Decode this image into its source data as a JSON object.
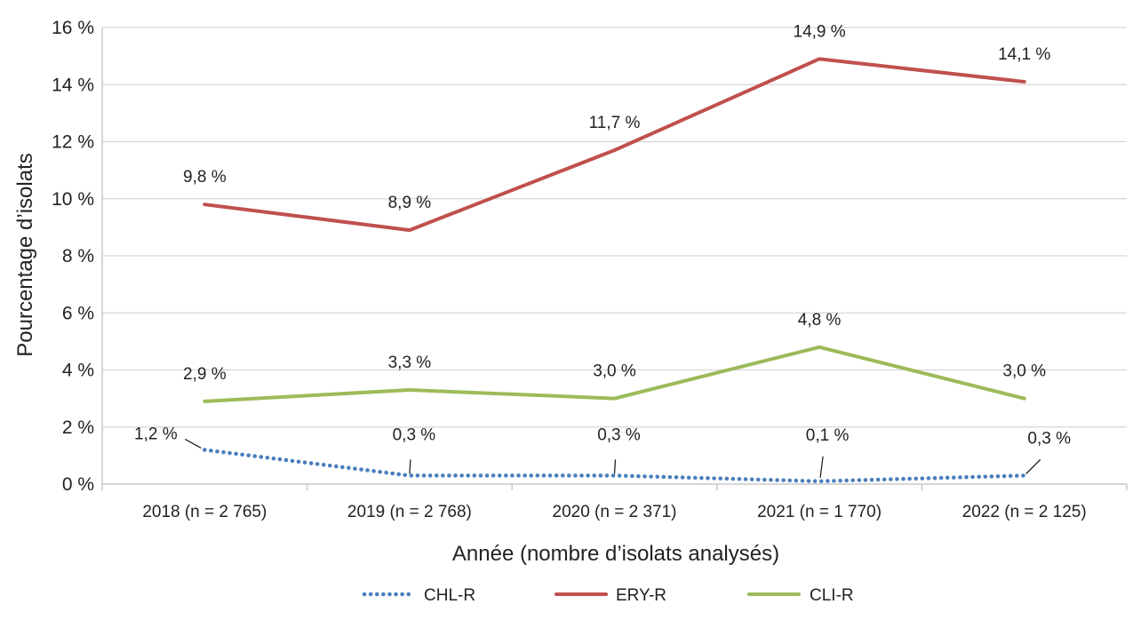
{
  "chart_data": {
    "type": "line",
    "title": "",
    "xlabel": "Année (nombre d’isolats analysés)",
    "ylabel": "Pourcentage d’isolats",
    "categories": [
      "2018 (n = 2 765)",
      "2019 (n = 2 768)",
      "2020 (n = 2 371)",
      "2021 (n = 1 770)",
      "2022 (n = 2 125)"
    ],
    "ylim": [
      0,
      16
    ],
    "yticks": [
      0,
      2,
      4,
      6,
      8,
      10,
      12,
      14,
      16
    ],
    "ytick_labels": [
      "0 %",
      "2 %",
      "4 %",
      "6 %",
      "8 %",
      "10 %",
      "12 %",
      "14 %",
      "16 %"
    ],
    "grid": true,
    "legend_position": "bottom",
    "series": [
      {
        "name": "CHL-R",
        "color": "#4a7ebb",
        "style": "dotted",
        "values": [
          1.2,
          0.3,
          0.3,
          0.1,
          0.3
        ],
        "labels": [
          "1,2 %",
          "0,3 %",
          "0,3 %",
          "0,1 %",
          "0,3 %"
        ]
      },
      {
        "name": "ERY-R",
        "color": "#c0504d",
        "style": "solid",
        "values": [
          9.8,
          8.9,
          11.7,
          14.9,
          14.1
        ],
        "labels": [
          "9,8 %",
          "8,9 %",
          "11,7 %",
          "14,9 %",
          "14,1 %"
        ]
      },
      {
        "name": "CLI-R",
        "color": "#9bbb59",
        "style": "solid",
        "values": [
          2.9,
          3.3,
          3.0,
          4.8,
          3.0
        ],
        "labels": [
          "2,9 %",
          "3,3 %",
          "3,0 %",
          "4,8 %",
          "3,0 %"
        ]
      }
    ]
  }
}
